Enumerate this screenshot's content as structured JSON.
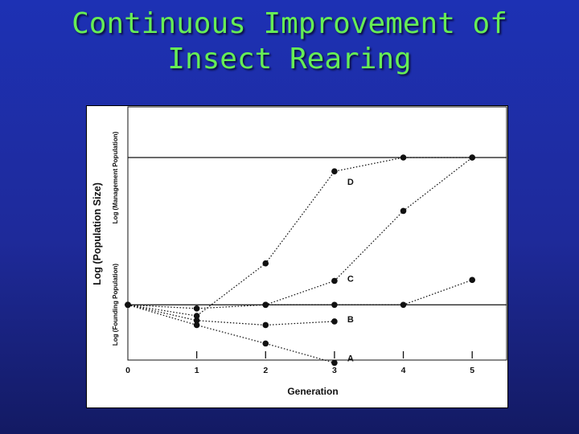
{
  "slide": {
    "title_line1": "Continuous Improvement of",
    "title_line2": "Insect Rearing",
    "background_color": "#1e2aa0",
    "title_color": "#66ee55"
  },
  "chart_data": {
    "type": "line",
    "title": "",
    "xlabel": "Generation",
    "ylabel": "Log (Population Size)",
    "ylabel_upper": "Log (Management Population)",
    "ylabel_lower": "Log (Founding Population)",
    "x": [
      0,
      1,
      2,
      3,
      4,
      5
    ],
    "xlim": [
      0,
      5.5
    ],
    "ylim": [
      -0.6,
      2.15
    ],
    "grid": false,
    "legend": "none",
    "reference_lines": [
      {
        "name": "Founding Population",
        "y": 0
      },
      {
        "name": "Management Population",
        "y": 1.6
      }
    ],
    "series": [
      {
        "name": "A",
        "x": [
          0,
          1,
          2,
          3
        ],
        "y": [
          0,
          -0.22,
          -0.42,
          -0.63
        ]
      },
      {
        "name": "B",
        "x": [
          0,
          1,
          2,
          3
        ],
        "y": [
          0,
          -0.17,
          -0.22,
          -0.18
        ]
      },
      {
        "name": "C",
        "x": [
          0,
          1,
          2,
          3,
          4,
          5
        ],
        "y": [
          0,
          -0.04,
          0,
          0.26,
          1.02,
          1.6
        ]
      },
      {
        "name": "D",
        "x": [
          0,
          1,
          2,
          3,
          4,
          5
        ],
        "y": [
          0,
          -0.12,
          0.45,
          1.45,
          1.6,
          1.6
        ]
      },
      {
        "name": "",
        "x": [
          2,
          3,
          4,
          5
        ],
        "y": [
          0,
          0,
          0,
          0.27
        ]
      }
    ]
  }
}
